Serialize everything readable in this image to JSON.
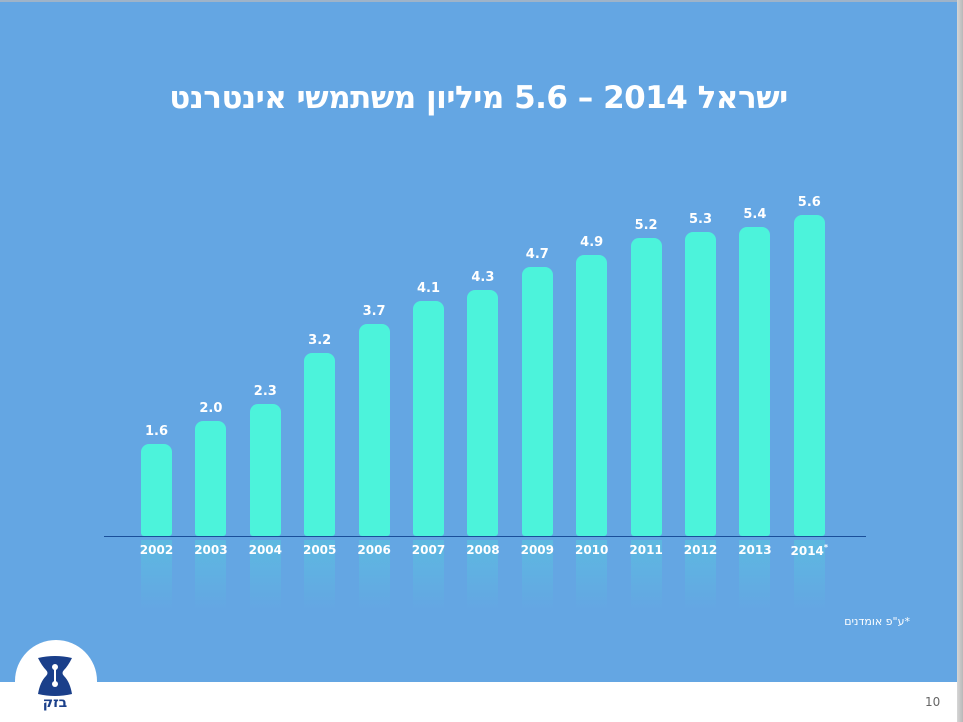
{
  "slide": {
    "title": "ישראל 2014 – 5.6 מיליון משתמשי אינטרנט",
    "footnote": "*ע\"פ אומדנים",
    "page_number": "10",
    "logo_text": "בזק",
    "colors": {
      "background": "#64a6e3",
      "bar": "#4cf3db",
      "axis": "#1a4f9a",
      "logo": "#1a3f8a"
    }
  },
  "chart_data": {
    "type": "bar",
    "title": "ישראל 2014 – 5.6 מיליון משתמשי אינטרנט",
    "xlabel": "",
    "ylabel": "",
    "categories": [
      "2002",
      "2003",
      "2004",
      "2005",
      "2006",
      "2007",
      "2008",
      "2009",
      "2010",
      "2011",
      "2012",
      "2013",
      "2014*"
    ],
    "values": [
      1.6,
      2.0,
      2.3,
      3.2,
      3.7,
      4.1,
      4.3,
      4.7,
      4.9,
      5.2,
      5.3,
      5.4,
      5.6
    ],
    "value_labels": [
      "1.6",
      "2.0",
      "2.3",
      "3.2",
      "3.7",
      "4.1",
      "4.3",
      "4.7",
      "4.9",
      "5.2",
      "5.3",
      "5.4",
      "5.6"
    ],
    "units": "million internet users",
    "annotations": [
      "2014 value is an estimate (*ע\"פ אומדנים)"
    ],
    "grid": false,
    "legend": null,
    "ylim": [
      0,
      6
    ]
  }
}
